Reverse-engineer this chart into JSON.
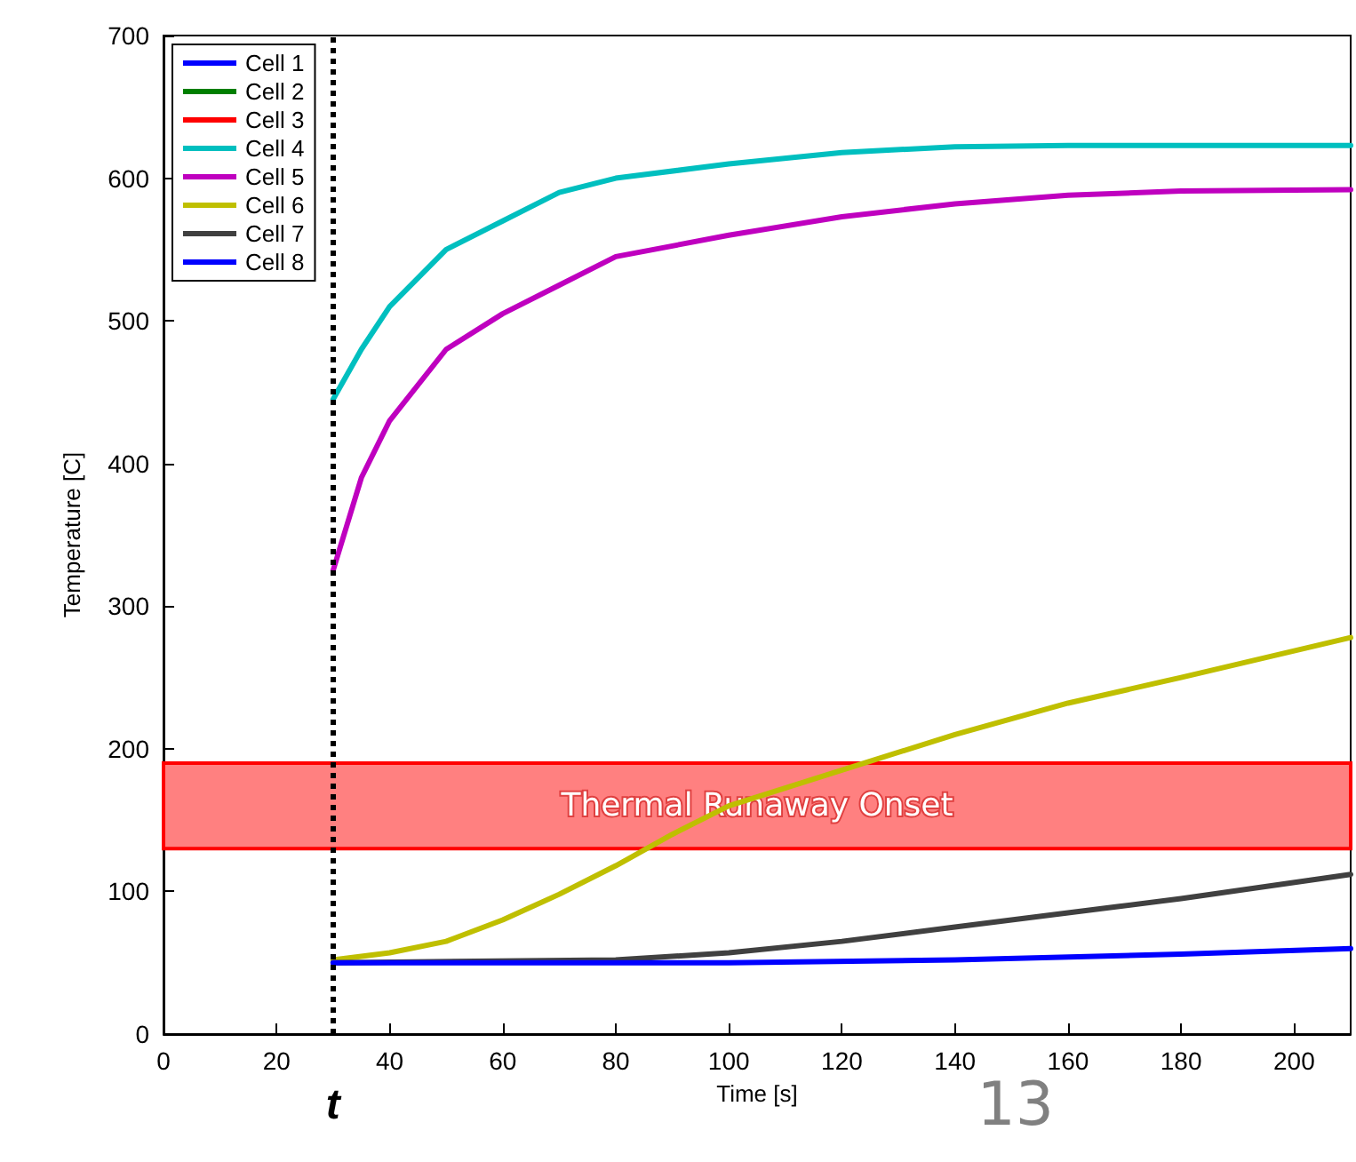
{
  "chart_data": {
    "type": "line",
    "xlabel": "Time [s]",
    "ylabel": "Temperature [C]",
    "xlim": [
      0,
      210
    ],
    "xticks": [
      0,
      20,
      40,
      60,
      80,
      100,
      120,
      140,
      160,
      180,
      200
    ],
    "ylim": [
      0,
      700
    ],
    "yticks": [
      0,
      100,
      200,
      300,
      400,
      500,
      600,
      700
    ],
    "grid": false,
    "legend": "top left",
    "marker": "none",
    "line_style": "solid",
    "series": [
      {
        "name": "Cell 1",
        "color": "#0000ff"
      },
      {
        "name": "Cell 2",
        "color": "#007f00"
      },
      {
        "name": "Cell 3",
        "color": "#ff0000"
      },
      {
        "name": "Cell 4",
        "color": "#00bfbf",
        "x": [
          30,
          35,
          40,
          50,
          60,
          70,
          80,
          100,
          120,
          140,
          160,
          180,
          210
        ],
        "values": [
          445,
          480,
          510,
          550,
          570,
          590,
          600,
          610,
          618,
          622,
          623,
          623,
          623
        ]
      },
      {
        "name": "Cell 5",
        "color": "#bf00bf",
        "x": [
          30,
          35,
          40,
          50,
          60,
          70,
          80,
          100,
          120,
          140,
          160,
          180,
          210
        ],
        "values": [
          325,
          390,
          430,
          480,
          505,
          525,
          545,
          560,
          573,
          582,
          588,
          591,
          592
        ]
      },
      {
        "name": "Cell 6",
        "color": "#bfbf00",
        "x": [
          30,
          40,
          50,
          60,
          70,
          80,
          90,
          100,
          120,
          140,
          160,
          180,
          210
        ],
        "values": [
          52,
          57,
          65,
          80,
          98,
          118,
          140,
          160,
          185,
          210,
          232,
          250,
          278
        ]
      },
      {
        "name": "Cell 7",
        "color": "#404040",
        "x": [
          30,
          80,
          100,
          120,
          140,
          160,
          180,
          210
        ],
        "values": [
          50,
          52,
          57,
          65,
          75,
          85,
          95,
          112
        ]
      },
      {
        "name": "Cell 8",
        "color": "#0000ff",
        "x": [
          30,
          100,
          140,
          180,
          210
        ],
        "values": [
          50,
          50,
          52,
          56,
          60
        ]
      }
    ],
    "bands": [
      {
        "axis": "y",
        "from": 130,
        "to": 190,
        "label": "Thermal Runaway Onset",
        "color": "#ff8080"
      }
    ],
    "ref_lines": [
      {
        "axis": "x",
        "value": 30,
        "label": "t",
        "color": "#000000",
        "line_style": "dotted"
      }
    ],
    "annotations": [
      "13"
    ]
  }
}
